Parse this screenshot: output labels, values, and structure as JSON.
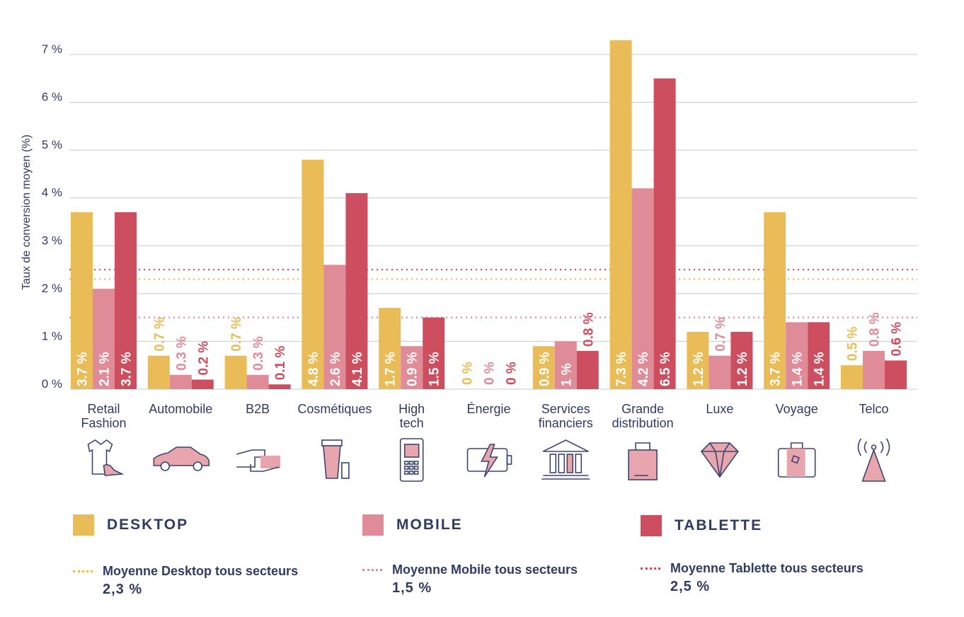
{
  "chart_data": {
    "type": "bar",
    "title": "",
    "ylabel": "Taux de conversion moyen (%)",
    "ylim": [
      0,
      7
    ],
    "yticks": [
      "0 %",
      "1 %",
      "2 %",
      "3 %",
      "4 %",
      "5 %",
      "6 %",
      "7 %"
    ],
    "categories": [
      [
        "Retail",
        "Fashion"
      ],
      [
        "Automobile"
      ],
      [
        "B2B"
      ],
      [
        "Cosmétiques"
      ],
      [
        "High",
        "tech"
      ],
      [
        "Énergie"
      ],
      [
        "Services",
        "financiers"
      ],
      [
        "Grande",
        "distribution"
      ],
      [
        "Luxe"
      ],
      [
        "Voyage"
      ],
      [
        "Telco"
      ]
    ],
    "icons": [
      "clothing-icon",
      "car-icon",
      "handshake-icon",
      "cosmetics-icon",
      "phone-icon",
      "battery-icon",
      "bank-icon",
      "shopping-bag-icon",
      "diamond-icon",
      "suitcase-icon",
      "antenna-icon"
    ],
    "series": [
      {
        "name": "DESKTOP",
        "color": "#e9bc57",
        "values": [
          3.7,
          0.7,
          0.7,
          4.8,
          1.7,
          0,
          0.9,
          7.3,
          1.2,
          3.7,
          0.5
        ],
        "labels": [
          "3.7 %",
          "0.7 %",
          "0.7 %",
          "4.8 %",
          "1.7 %",
          "0 %",
          "0.9 %",
          "7.3 %",
          "1.2 %",
          "3.7 %",
          "0.5 %"
        ]
      },
      {
        "name": "MOBILE",
        "color": "#df8c98",
        "values": [
          2.1,
          0.3,
          0.3,
          2.6,
          0.9,
          0,
          1,
          4.2,
          0.7,
          1.4,
          0.8
        ],
        "labels": [
          "2.1 %",
          "0.3 %",
          "0.3 %",
          "2.6 %",
          "0.9 %",
          "0 %",
          "1 %",
          "4.2 %",
          "0.7 %",
          "1.4 %",
          "0.8 %"
        ]
      },
      {
        "name": "TABLETTE",
        "color": "#cd4e5e",
        "values": [
          3.7,
          0.2,
          0.1,
          4.1,
          1.5,
          0,
          0.8,
          6.5,
          1.2,
          1.4,
          0.6
        ],
        "labels": [
          "3.7 %",
          "0.2 %",
          "0.1 %",
          "4.1 %",
          "1.5 %",
          "0 %",
          "0.8 %",
          "6.5 %",
          "1.2 %",
          "1.4 %",
          "0.6 %"
        ]
      }
    ],
    "averages": [
      {
        "name": "Moyenne Desktop tous secteurs",
        "value": 2.3,
        "label": "2,3 %",
        "color": "#e9bc57"
      },
      {
        "name": "Moyenne Mobile tous secteurs",
        "value": 1.5,
        "label": "1,5 %",
        "color": "#df8c98"
      },
      {
        "name": "Moyenne Tablette tous secteurs",
        "value": 2.5,
        "label": "2,5 %",
        "color": "#cd4e5e"
      }
    ],
    "grid": true,
    "legend_position": "bottom"
  },
  "colors": {
    "text": "#2f3b63",
    "grid": "#c8c8c8"
  }
}
